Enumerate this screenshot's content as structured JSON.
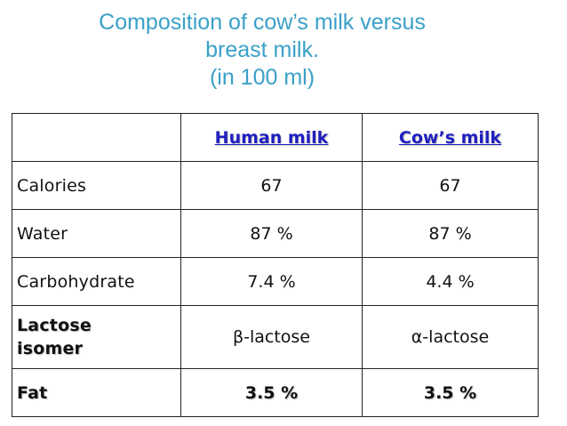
{
  "title": {
    "line1": "Composition of cow’s milk versus",
    "line2": "breast milk.",
    "line3": "(in 100 ml)"
  },
  "table": {
    "header": {
      "empty": "",
      "human": "Human milk",
      "cow": "Cow’s milk"
    },
    "rows": [
      {
        "label": "Calories",
        "human": "67",
        "cow": "67"
      },
      {
        "label": "Water",
        "human": "87 %",
        "cow": "87 %"
      },
      {
        "label": "Carbohydrate",
        "human": "7.4 %",
        "cow": "4.4 %"
      },
      {
        "label_line1": "Lactose",
        "label_line2": "isomer",
        "human": "β-lactose",
        "cow": "α-lactose"
      },
      {
        "label": "Fat",
        "human": "3.5 %",
        "cow": "3.5 %"
      }
    ]
  },
  "colors": {
    "title": "#3aa0c8",
    "header_text": "#1f1fbf",
    "border": "#222222"
  }
}
